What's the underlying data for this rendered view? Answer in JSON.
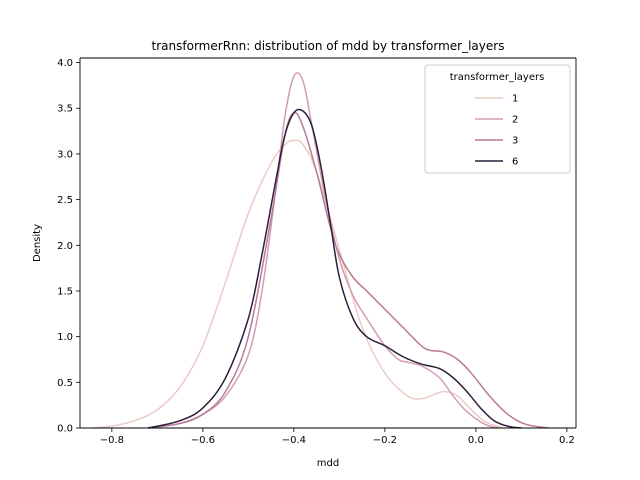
{
  "chart_data": {
    "type": "line",
    "title": "transformerRnn: distribution of mdd by transformer_layers",
    "xlabel": "mdd",
    "ylabel": "Density",
    "xlim": [
      -0.87,
      0.22
    ],
    "ylim": [
      0,
      4.05
    ],
    "xticks": [
      -0.8,
      -0.6,
      -0.4,
      -0.2,
      0.0,
      0.2
    ],
    "xtick_labels": [
      "−0.8",
      "−0.6",
      "−0.4",
      "−0.2",
      "0.0",
      "0.2"
    ],
    "yticks": [
      0.0,
      0.5,
      1.0,
      1.5,
      2.0,
      2.5,
      3.0,
      3.5,
      4.0
    ],
    "ytick_labels": [
      "0.0",
      "0.5",
      "1.0",
      "1.5",
      "2.0",
      "2.5",
      "3.0",
      "3.5",
      "4.0"
    ],
    "grid": false,
    "legend": {
      "title": "transformer_layers",
      "position": "top-right"
    },
    "series": [
      {
        "name": "1",
        "color": "#ebcbc7",
        "x": [
          -0.84,
          -0.8,
          -0.75,
          -0.7,
          -0.65,
          -0.6,
          -0.55,
          -0.5,
          -0.45,
          -0.42,
          -0.4,
          -0.38,
          -0.35,
          -0.3,
          -0.25,
          -0.2,
          -0.15,
          -0.12,
          -0.1,
          -0.07,
          -0.04,
          -0.01,
          0.02,
          0.06
        ],
        "y": [
          0.0,
          0.02,
          0.08,
          0.2,
          0.45,
          0.9,
          1.6,
          2.35,
          2.9,
          3.1,
          3.15,
          3.1,
          2.8,
          1.95,
          1.1,
          0.6,
          0.35,
          0.32,
          0.35,
          0.4,
          0.35,
          0.2,
          0.07,
          0.0
        ]
      },
      {
        "name": "2",
        "color": "#d39db0",
        "x": [
          -0.72,
          -0.65,
          -0.6,
          -0.55,
          -0.5,
          -0.47,
          -0.44,
          -0.42,
          -0.4,
          -0.38,
          -0.36,
          -0.33,
          -0.3,
          -0.27,
          -0.24,
          -0.2,
          -0.17,
          -0.15,
          -0.12,
          -0.08,
          -0.05,
          -0.02,
          0.02,
          0.05
        ],
        "y": [
          0.0,
          0.05,
          0.15,
          0.35,
          0.8,
          1.5,
          2.6,
          3.4,
          3.85,
          3.8,
          3.3,
          2.5,
          1.85,
          1.45,
          1.2,
          0.9,
          0.75,
          0.72,
          0.68,
          0.55,
          0.35,
          0.18,
          0.04,
          0.0
        ]
      },
      {
        "name": "3",
        "color": "#b97a94",
        "x": [
          -0.72,
          -0.65,
          -0.6,
          -0.55,
          -0.5,
          -0.45,
          -0.42,
          -0.4,
          -0.38,
          -0.35,
          -0.32,
          -0.3,
          -0.27,
          -0.24,
          -0.2,
          -0.16,
          -0.12,
          -0.1,
          -0.07,
          -0.04,
          -0.01,
          0.03,
          0.07,
          0.11,
          0.16
        ],
        "y": [
          0.0,
          0.05,
          0.15,
          0.4,
          1.0,
          2.3,
          3.2,
          3.45,
          3.3,
          2.8,
          2.2,
          1.9,
          1.65,
          1.5,
          1.3,
          1.1,
          0.9,
          0.85,
          0.83,
          0.75,
          0.6,
          0.35,
          0.15,
          0.04,
          0.0
        ]
      },
      {
        "name": "6",
        "color": "#2d1e3e",
        "x": [
          -0.72,
          -0.65,
          -0.6,
          -0.55,
          -0.5,
          -0.47,
          -0.44,
          -0.42,
          -0.4,
          -0.38,
          -0.36,
          -0.34,
          -0.32,
          -0.3,
          -0.27,
          -0.24,
          -0.2,
          -0.16,
          -0.12,
          -0.08,
          -0.05,
          -0.02,
          0.01,
          0.04,
          0.07,
          0.1
        ],
        "y": [
          0.0,
          0.08,
          0.22,
          0.55,
          1.2,
          1.9,
          2.7,
          3.2,
          3.45,
          3.47,
          3.3,
          2.85,
          2.25,
          1.65,
          1.2,
          1.0,
          0.9,
          0.78,
          0.7,
          0.65,
          0.55,
          0.4,
          0.22,
          0.08,
          0.02,
          0.0
        ]
      }
    ]
  }
}
